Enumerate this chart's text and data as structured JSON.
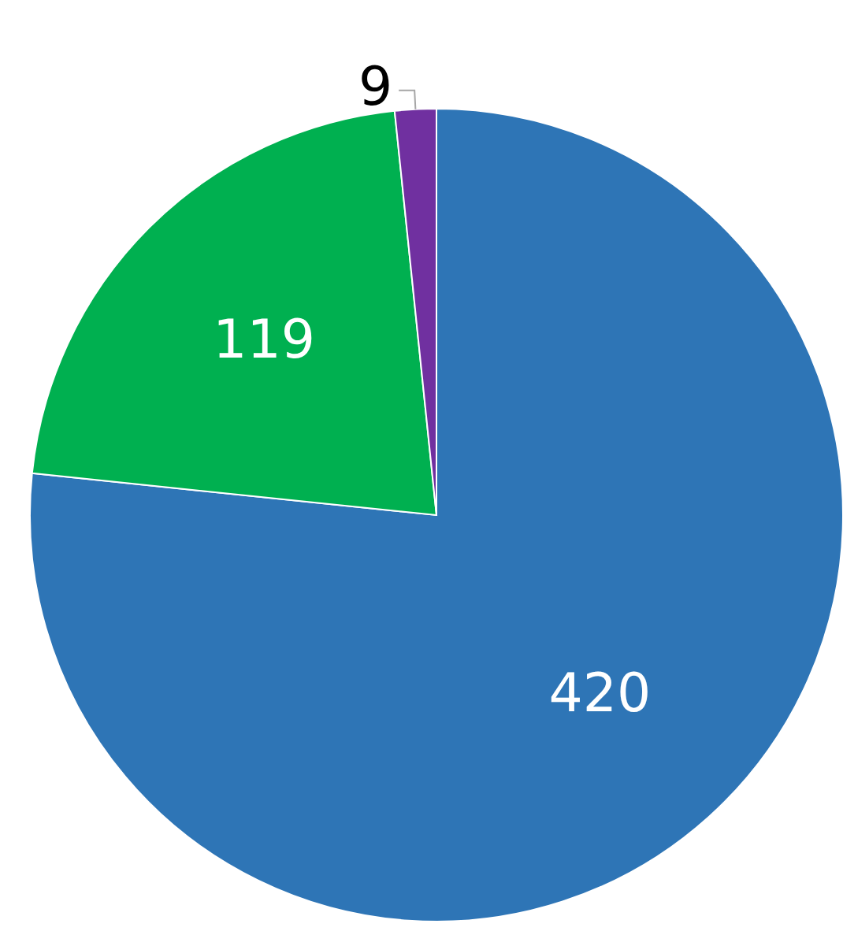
{
  "chart_data": {
    "type": "pie",
    "categories": [
      null,
      null,
      null
    ],
    "values": [
      420,
      119,
      9
    ],
    "colors": [
      "#2e75b6",
      "#00b050",
      "#7030a0"
    ],
    "data_labels": true
  }
}
